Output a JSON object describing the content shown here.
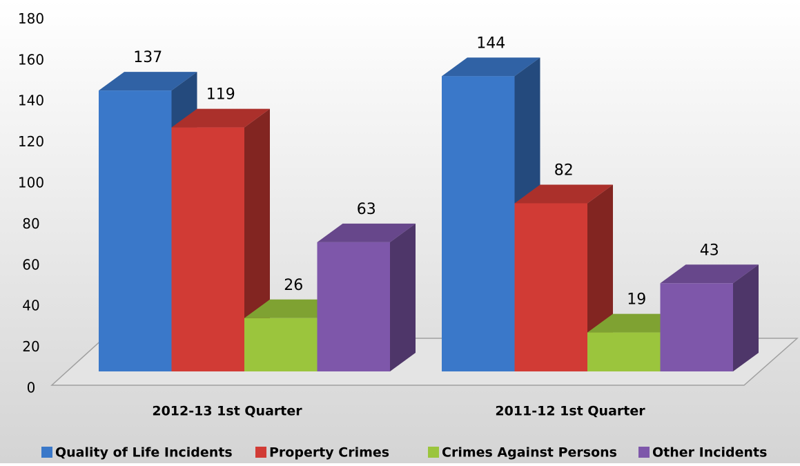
{
  "chart_data": {
    "type": "bar3d",
    "categories": [
      "2012-13 1st Quarter",
      "2011-12 1st Quarter"
    ],
    "series": [
      {
        "name": "Quality of Life Incidents",
        "color": "#3a78c9",
        "values": [
          137,
          144
        ]
      },
      {
        "name": "Property Crimes",
        "color": "#d13b35",
        "values": [
          119,
          82
        ]
      },
      {
        "name": "Crimes Against Persons",
        "color": "#9bc53d",
        "values": [
          26,
          19
        ]
      },
      {
        "name": "Other Incidents",
        "color": "#7e57aa",
        "values": [
          63,
          43
        ]
      }
    ],
    "ylim": [
      0,
      180
    ],
    "yticks": [
      0,
      20,
      40,
      60,
      80,
      100,
      120,
      140,
      160,
      180
    ],
    "grid": false,
    "legend": "bottom",
    "data_labels": true
  }
}
